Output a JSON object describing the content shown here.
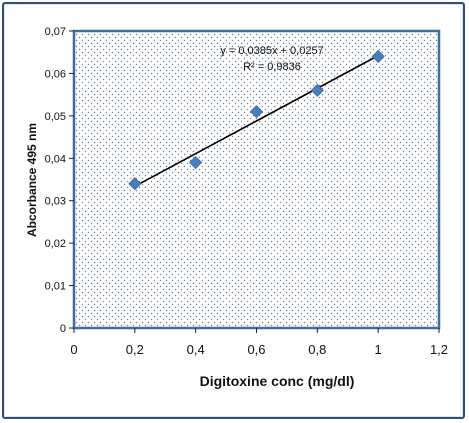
{
  "chart_data": {
    "type": "scatter",
    "title": "",
    "xlabel": "Digitoxine conc (mg/dl)",
    "ylabel": "Abcorbance 495 nm",
    "xlim": [
      0,
      1.2
    ],
    "ylim": [
      0,
      0.07
    ],
    "x_ticks": [
      "0",
      "0,2",
      "0,4",
      "0,6",
      "0,8",
      "1",
      "1,2"
    ],
    "y_ticks": [
      "0",
      "0,01",
      "0,02",
      "0,03",
      "0,04",
      "0,05",
      "0,06",
      "0,07"
    ],
    "series": [
      {
        "x": [
          0.2,
          0.4,
          0.6,
          0.8,
          1.0
        ],
        "y": [
          0.034,
          0.039,
          0.051,
          0.056,
          0.064
        ]
      }
    ],
    "trendline": {
      "type": "linear",
      "slope": 0.0385,
      "intercept": 0.0257,
      "x_range": [
        0.2,
        1.0
      ],
      "equation": "y = 0,0385x + 0,0257",
      "r_squared": "R² = 0,9836"
    },
    "marker_color": "#4a7ebb",
    "line_color": "#000000",
    "plot_background": "dotted",
    "grid": false,
    "legend": "none"
  }
}
